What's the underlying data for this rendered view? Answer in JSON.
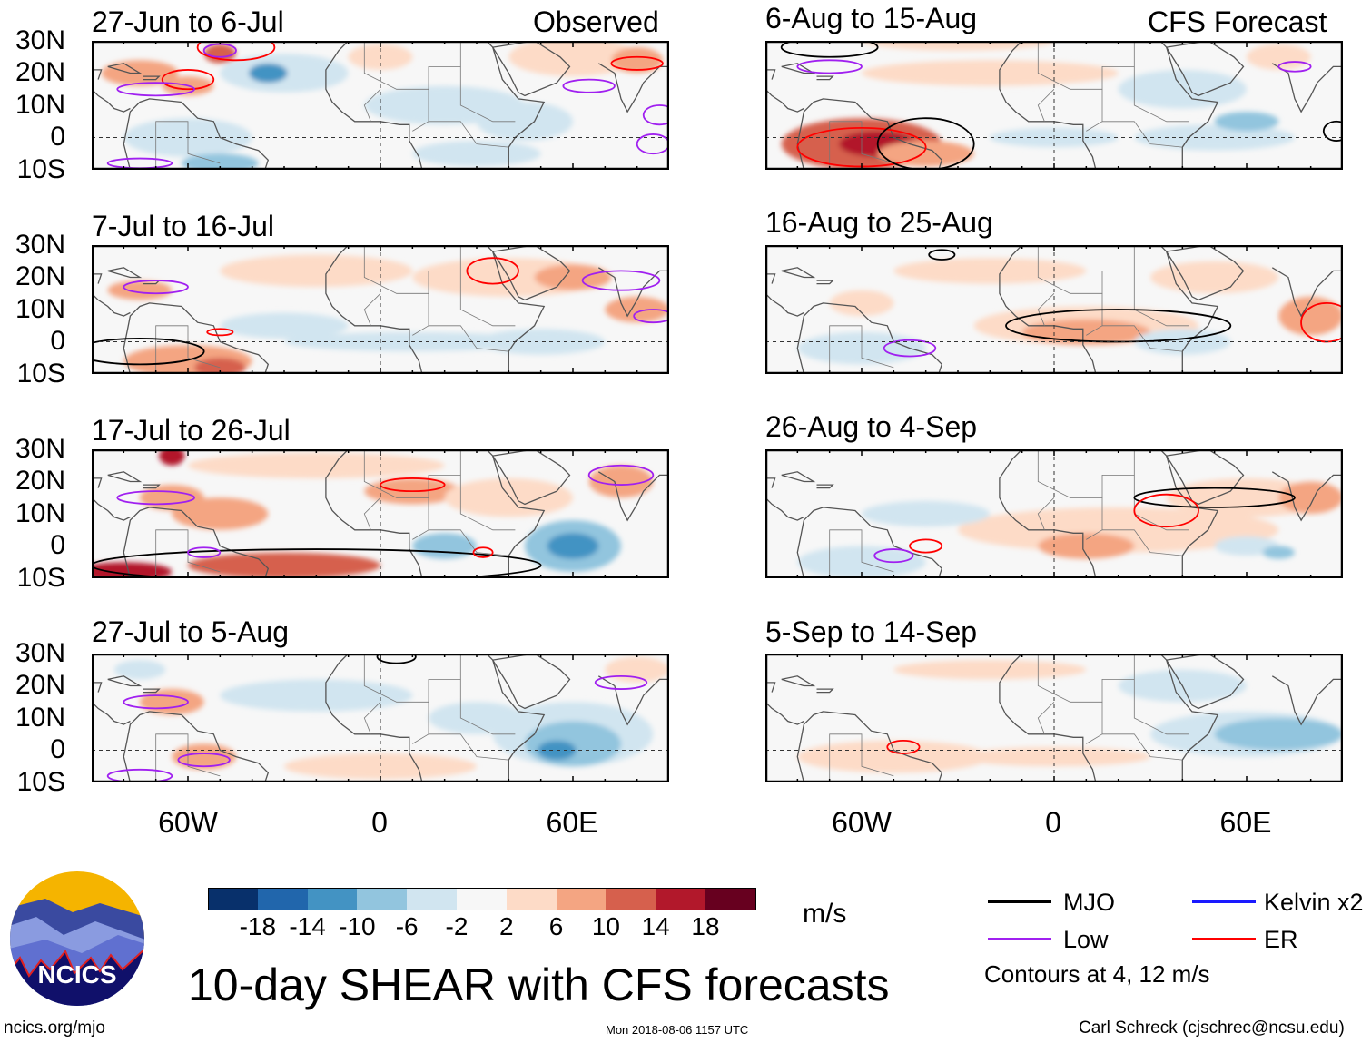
{
  "panels": {
    "observed_tag": "Observed",
    "forecast_tag": "CFS Forecast",
    "left": [
      "27-Jun to 6-Jul",
      "7-Jul to 16-Jul",
      "17-Jul to 26-Jul",
      "27-Jul to 5-Aug"
    ],
    "right": [
      "6-Aug to 15-Aug",
      "16-Aug to 25-Aug",
      "26-Aug to 4-Sep",
      "5-Sep to 14-Sep"
    ]
  },
  "axes": {
    "lat_labels": [
      "30N",
      "20N",
      "10N",
      "0",
      "10S"
    ],
    "lon_labels": [
      "60W",
      "0",
      "60E"
    ]
  },
  "colorbar": {
    "colors": [
      "#08306b",
      "#2166ac",
      "#4393c3",
      "#92c5de",
      "#d1e5f0",
      "#f7f7f7",
      "#fddbc7",
      "#f4a582",
      "#d6604d",
      "#b2182b",
      "#67001f"
    ],
    "labels": [
      "-18",
      "-14",
      "-10",
      "-6",
      "-2",
      "2",
      "6",
      "10",
      "14",
      "18"
    ],
    "units": "m/s"
  },
  "legend": {
    "items": [
      {
        "label": "MJO",
        "color": "#000000"
      },
      {
        "label": "Kelvin x2",
        "color": "#1a1aff"
      },
      {
        "label": "Low",
        "color": "#a020f0"
      },
      {
        "label": "ER",
        "color": "#ff0000"
      }
    ],
    "note": "Contours at 4, 12 m/s"
  },
  "title": "10-day SHEAR with CFS forecasts",
  "logo_text": "NCICS",
  "footer": {
    "url": "ncics.org/mjo",
    "timestamp": "Mon 2018-08-06 1157 UTC",
    "author": "Carl Schreck (cjschrec@ncsu.edu)"
  }
}
